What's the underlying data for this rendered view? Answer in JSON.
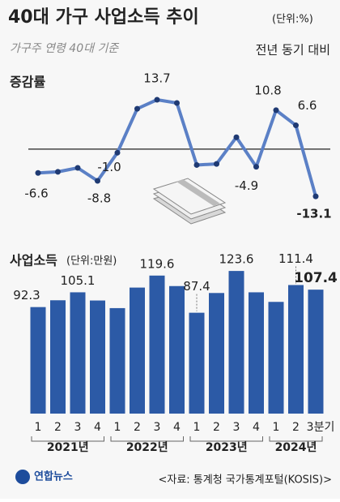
{
  "header": {
    "title": "40대 가구 사업소득 추이",
    "unit": "(단위:%)",
    "subtitle": "가구주 연령 40대 기준",
    "note": "전년 동기 대비"
  },
  "chart_data": [
    {
      "type": "line",
      "title": "증감률",
      "color": "#5b80c6",
      "ylim": [
        -16,
        20
      ],
      "values": [
        -6.6,
        -6.3,
        -5.2,
        -8.8,
        -1.0,
        11.2,
        13.7,
        12.8,
        -4.4,
        -4.1,
        3.3,
        -4.9,
        10.8,
        6.6,
        -13.1
      ],
      "value_labels": [
        "-6.6",
        null,
        null,
        "-8.8",
        "-1.0",
        null,
        "13.7",
        null,
        null,
        null,
        null,
        "-4.9",
        "10.8",
        "6.6",
        "-13.1"
      ]
    },
    {
      "type": "bar",
      "title": "사업소득",
      "unit": "(단위:만원)",
      "color": "#2c5aa6",
      "ylim": [
        0,
        130
      ],
      "categories": [
        "1",
        "2",
        "3",
        "4",
        "1",
        "2",
        "3",
        "4",
        "1",
        "2",
        "3",
        "4",
        "1",
        "2",
        "3분기"
      ],
      "year_groups": [
        "2021년",
        "2022년",
        "2023년",
        "2024년"
      ],
      "values": [
        92.3,
        98.2,
        105.1,
        98.0,
        91.4,
        109.2,
        119.6,
        110.5,
        87.4,
        104.5,
        123.6,
        105.1,
        96.8,
        111.4,
        107.4
      ],
      "value_labels": [
        "92.3",
        null,
        "105.1",
        null,
        null,
        null,
        "119.6",
        null,
        "87.4",
        null,
        "123.6",
        null,
        null,
        "111.4",
        "107.4"
      ]
    }
  ],
  "footer": {
    "brand": "연합뉴스",
    "source": "<자료: 통계청 국가통계포털(KOSIS)>"
  }
}
